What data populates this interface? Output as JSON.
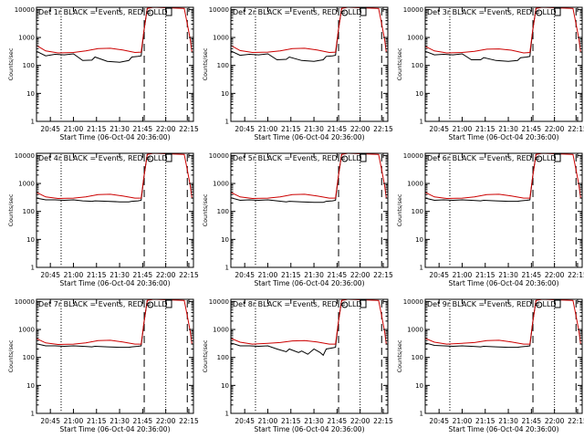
{
  "figure": {
    "x_title": "Start Time (06-Oct-04 20:36:00)",
    "y_title": "Counts/sec",
    "x_ticks": [
      "20:45",
      "21:00",
      "21:15",
      "21:30",
      "21:45",
      "22:00",
      "22:15"
    ],
    "y_ticks": [
      "1",
      "10",
      "100",
      "1000",
      "10000"
    ]
  },
  "chart_data": [
    {
      "type": "line",
      "title": "Det 1r BLACK = Events, RED = LLD",
      "xlabel": "Start Time (06-Oct-04 20:36:00)",
      "ylabel": "Counts/sec",
      "y_scale": "log",
      "ylim": [
        1,
        12000
      ],
      "xlim": [
        "20:36",
        "22:18"
      ],
      "series": [
        {
          "name": "Events",
          "color": "#000000",
          "x": [
            "20:36",
            "20:42",
            "20:48",
            "20:54",
            "21:00",
            "21:06",
            "21:12",
            "21:14",
            "21:22",
            "21:30",
            "21:36",
            "21:38",
            "21:42",
            "21:44",
            "21:46",
            "21:48"
          ],
          "y": [
            320,
            220,
            250,
            240,
            260,
            150,
            155,
            200,
            140,
            130,
            150,
            200,
            210,
            220,
            2000,
            11000
          ]
        },
        {
          "name": "LLD",
          "color": "#cc0000",
          "x": [
            "20:36",
            "20:42",
            "20:50",
            "21:00",
            "21:08",
            "21:16",
            "21:24",
            "21:32",
            "21:40",
            "21:44",
            "21:46",
            "21:48",
            "21:52",
            "22:12",
            "22:14",
            "22:16",
            "22:17"
          ],
          "y": [
            520,
            330,
            280,
            290,
            330,
            400,
            410,
            360,
            290,
            300,
            2000,
            11000,
            12000,
            11000,
            3000,
            800,
            300
          ]
        }
      ]
    },
    {
      "type": "line",
      "title": "Det 2r BLACK = Events, RED = LLD",
      "xlabel": "Start Time (06-Oct-04 20:36:00)",
      "ylabel": "Counts/sec",
      "y_scale": "log",
      "ylim": [
        1,
        12000
      ],
      "xlim": [
        "20:36",
        "22:18"
      ],
      "series": [
        {
          "name": "Events",
          "color": "#000000",
          "x": [
            "20:36",
            "20:42",
            "20:48",
            "20:54",
            "21:00",
            "21:06",
            "21:12",
            "21:14",
            "21:22",
            "21:30",
            "21:36",
            "21:38",
            "21:42",
            "21:44",
            "21:46",
            "21:48"
          ],
          "y": [
            330,
            230,
            250,
            240,
            260,
            160,
            165,
            200,
            150,
            140,
            160,
            210,
            220,
            230,
            2000,
            11000
          ]
        },
        {
          "name": "LLD",
          "color": "#cc0000",
          "x": [
            "20:36",
            "20:42",
            "20:50",
            "21:00",
            "21:08",
            "21:16",
            "21:24",
            "21:32",
            "21:40",
            "21:44",
            "21:46",
            "21:48",
            "21:52",
            "22:12",
            "22:14",
            "22:16",
            "22:17"
          ],
          "y": [
            520,
            340,
            290,
            300,
            330,
            400,
            410,
            360,
            290,
            300,
            2000,
            11000,
            12000,
            11000,
            3000,
            800,
            300
          ]
        }
      ]
    },
    {
      "type": "line",
      "title": "Det 3r BLACK = Events, RED = LLD",
      "xlabel": "Start Time (06-Oct-04 20:36:00)",
      "ylabel": "Counts/sec",
      "y_scale": "log",
      "ylim": [
        1,
        12000
      ],
      "xlim": [
        "20:36",
        "22:18"
      ],
      "series": [
        {
          "name": "Events",
          "color": "#000000",
          "x": [
            "20:36",
            "20:42",
            "20:48",
            "20:54",
            "21:00",
            "21:06",
            "21:12",
            "21:14",
            "21:22",
            "21:30",
            "21:36",
            "21:38",
            "21:42",
            "21:44",
            "21:46",
            "21:48"
          ],
          "y": [
            320,
            240,
            250,
            240,
            260,
            160,
            160,
            190,
            150,
            140,
            150,
            190,
            200,
            210,
            2000,
            11000
          ]
        },
        {
          "name": "LLD",
          "color": "#cc0000",
          "x": [
            "20:36",
            "20:42",
            "20:50",
            "21:00",
            "21:08",
            "21:16",
            "21:24",
            "21:32",
            "21:40",
            "21:44",
            "21:46",
            "21:48",
            "21:52",
            "22:12",
            "22:14",
            "22:16",
            "22:17"
          ],
          "y": [
            480,
            330,
            280,
            290,
            320,
            380,
            390,
            350,
            280,
            290,
            2000,
            11000,
            12000,
            11000,
            3000,
            800,
            300
          ]
        }
      ]
    },
    {
      "type": "line",
      "title": "Det 4r BLACK = Events, RED = LLD",
      "xlabel": "Start Time (06-Oct-04 20:36:00)",
      "ylabel": "Counts/sec",
      "y_scale": "log",
      "ylim": [
        1,
        12000
      ],
      "xlim": [
        "20:36",
        "22:18"
      ],
      "series": [
        {
          "name": "Events",
          "color": "#000000",
          "x": [
            "20:36",
            "20:42",
            "20:48",
            "20:54",
            "21:00",
            "21:06",
            "21:12",
            "21:14",
            "21:22",
            "21:30",
            "21:36",
            "21:38",
            "21:42",
            "21:44",
            "21:46",
            "21:48"
          ],
          "y": [
            300,
            260,
            260,
            250,
            260,
            240,
            230,
            240,
            230,
            220,
            220,
            230,
            240,
            250,
            2000,
            11000
          ]
        },
        {
          "name": "LLD",
          "color": "#cc0000",
          "x": [
            "20:36",
            "20:42",
            "20:50",
            "21:00",
            "21:08",
            "21:16",
            "21:24",
            "21:32",
            "21:40",
            "21:44",
            "21:46",
            "21:48",
            "21:52",
            "22:12",
            "22:14",
            "22:16",
            "22:17"
          ],
          "y": [
            480,
            330,
            290,
            300,
            330,
            400,
            410,
            360,
            300,
            300,
            2000,
            11000,
            12000,
            11000,
            3000,
            800,
            300
          ]
        }
      ]
    },
    {
      "type": "line",
      "title": "Det 5r BLACK = Events, RED = LLD",
      "xlabel": "Start Time (06-Oct-04 20:36:00)",
      "ylabel": "Counts/sec",
      "y_scale": "log",
      "ylim": [
        1,
        12000
      ],
      "xlim": [
        "20:36",
        "22:18"
      ],
      "series": [
        {
          "name": "Events",
          "color": "#000000",
          "x": [
            "20:36",
            "20:42",
            "20:48",
            "20:54",
            "21:00",
            "21:06",
            "21:12",
            "21:14",
            "21:22",
            "21:30",
            "21:36",
            "21:38",
            "21:42",
            "21:44",
            "21:46",
            "21:48"
          ],
          "y": [
            310,
            250,
            260,
            250,
            260,
            240,
            220,
            230,
            220,
            210,
            210,
            230,
            240,
            250,
            2000,
            11000
          ]
        },
        {
          "name": "LLD",
          "color": "#cc0000",
          "x": [
            "20:36",
            "20:42",
            "20:50",
            "21:00",
            "21:08",
            "21:16",
            "21:24",
            "21:32",
            "21:40",
            "21:44",
            "21:46",
            "21:48",
            "21:52",
            "22:12",
            "22:14",
            "22:16",
            "22:17"
          ],
          "y": [
            480,
            330,
            290,
            300,
            330,
            400,
            410,
            360,
            300,
            300,
            2000,
            11000,
            12000,
            11000,
            3000,
            800,
            300
          ]
        }
      ]
    },
    {
      "type": "line",
      "title": "Det 6r BLACK = Events, RED = LLD",
      "xlabel": "Start Time (06-Oct-04 20:36:00)",
      "ylabel": "Counts/sec",
      "y_scale": "log",
      "ylim": [
        1,
        12000
      ],
      "xlim": [
        "20:36",
        "22:18"
      ],
      "series": [
        {
          "name": "Events",
          "color": "#000000",
          "x": [
            "20:36",
            "20:42",
            "20:48",
            "20:54",
            "21:00",
            "21:06",
            "21:12",
            "21:14",
            "21:22",
            "21:30",
            "21:36",
            "21:38",
            "21:42",
            "21:44",
            "21:46",
            "21:48"
          ],
          "y": [
            300,
            250,
            260,
            250,
            260,
            250,
            240,
            250,
            240,
            230,
            230,
            240,
            250,
            260,
            2000,
            11000
          ]
        },
        {
          "name": "LLD",
          "color": "#cc0000",
          "x": [
            "20:36",
            "20:42",
            "20:50",
            "21:00",
            "21:08",
            "21:16",
            "21:24",
            "21:32",
            "21:40",
            "21:44",
            "21:46",
            "21:48",
            "21:52",
            "22:12",
            "22:14",
            "22:16",
            "22:17"
          ],
          "y": [
            480,
            330,
            290,
            300,
            330,
            400,
            410,
            360,
            300,
            300,
            2000,
            11000,
            12000,
            11000,
            3000,
            800,
            300
          ]
        }
      ]
    },
    {
      "type": "line",
      "title": "Det 7r BLACK = Events, RED = LLD",
      "xlabel": "Start Time (06-Oct-04 20:36:00)",
      "ylabel": "Counts/sec",
      "y_scale": "log",
      "ylim": [
        1,
        12000
      ],
      "xlim": [
        "20:36",
        "22:18"
      ],
      "series": [
        {
          "name": "Events",
          "color": "#000000",
          "x": [
            "20:36",
            "20:42",
            "20:48",
            "20:54",
            "21:00",
            "21:06",
            "21:12",
            "21:14",
            "21:22",
            "21:30",
            "21:36",
            "21:38",
            "21:42",
            "21:44",
            "21:46",
            "21:48"
          ],
          "y": [
            310,
            260,
            260,
            250,
            260,
            250,
            240,
            250,
            240,
            230,
            230,
            240,
            250,
            260,
            2000,
            11000
          ]
        },
        {
          "name": "LLD",
          "color": "#cc0000",
          "x": [
            "20:36",
            "20:42",
            "20:50",
            "21:00",
            "21:08",
            "21:16",
            "21:24",
            "21:32",
            "21:40",
            "21:44",
            "21:46",
            "21:48",
            "21:52",
            "22:12",
            "22:14",
            "22:16",
            "22:17"
          ],
          "y": [
            470,
            330,
            290,
            300,
            330,
            400,
            410,
            360,
            300,
            300,
            2000,
            11000,
            12000,
            11000,
            3000,
            800,
            300
          ]
        }
      ]
    },
    {
      "type": "line",
      "title": "Det 8r BLACK = Events, RED = LLD",
      "xlabel": "Start Time (06-Oct-04 20:36:00)",
      "ylabel": "Counts/sec",
      "y_scale": "log",
      "ylim": [
        1,
        12000
      ],
      "xlim": [
        "20:36",
        "22:18"
      ],
      "series": [
        {
          "name": "Events",
          "color": "#000000",
          "x": [
            "20:36",
            "20:42",
            "20:48",
            "20:54",
            "21:00",
            "21:06",
            "21:12",
            "21:14",
            "21:20",
            "21:22",
            "21:26",
            "21:30",
            "21:34",
            "21:36",
            "21:38",
            "21:42",
            "21:44",
            "21:46",
            "21:48"
          ],
          "y": [
            330,
            260,
            260,
            250,
            260,
            200,
            160,
            200,
            150,
            170,
            130,
            200,
            150,
            120,
            200,
            220,
            230,
            2000,
            11000
          ]
        },
        {
          "name": "LLD",
          "color": "#cc0000",
          "x": [
            "20:36",
            "20:42",
            "20:50",
            "21:00",
            "21:08",
            "21:16",
            "21:24",
            "21:32",
            "21:40",
            "21:44",
            "21:46",
            "21:48",
            "21:52",
            "22:12",
            "22:14",
            "22:16",
            "22:17"
          ],
          "y": [
            480,
            350,
            300,
            320,
            340,
            390,
            400,
            360,
            300,
            300,
            2000,
            11000,
            12000,
            11000,
            3000,
            800,
            300
          ]
        }
      ]
    },
    {
      "type": "line",
      "title": "Det 9r BLACK = Events, RED = LLD",
      "xlabel": "Start Time (06-Oct-04 20:36:00)",
      "ylabel": "Counts/sec",
      "y_scale": "log",
      "ylim": [
        1,
        12000
      ],
      "xlim": [
        "20:36",
        "22:18"
      ],
      "series": [
        {
          "name": "Events",
          "color": "#000000",
          "x": [
            "20:36",
            "20:42",
            "20:48",
            "20:54",
            "21:00",
            "21:06",
            "21:12",
            "21:14",
            "21:22",
            "21:30",
            "21:36",
            "21:38",
            "21:42",
            "21:44",
            "21:46",
            "21:48"
          ],
          "y": [
            330,
            270,
            260,
            250,
            260,
            250,
            240,
            250,
            240,
            230,
            230,
            240,
            250,
            260,
            2000,
            11000
          ]
        },
        {
          "name": "LLD",
          "color": "#cc0000",
          "x": [
            "20:36",
            "20:42",
            "20:50",
            "21:00",
            "21:08",
            "21:16",
            "21:24",
            "21:32",
            "21:40",
            "21:44",
            "21:46",
            "21:48",
            "21:52",
            "22:12",
            "22:14",
            "22:16",
            "22:17"
          ],
          "y": [
            480,
            350,
            300,
            320,
            340,
            400,
            410,
            360,
            300,
            300,
            2000,
            11000,
            12000,
            11000,
            3000,
            800,
            300
          ]
        }
      ]
    }
  ]
}
